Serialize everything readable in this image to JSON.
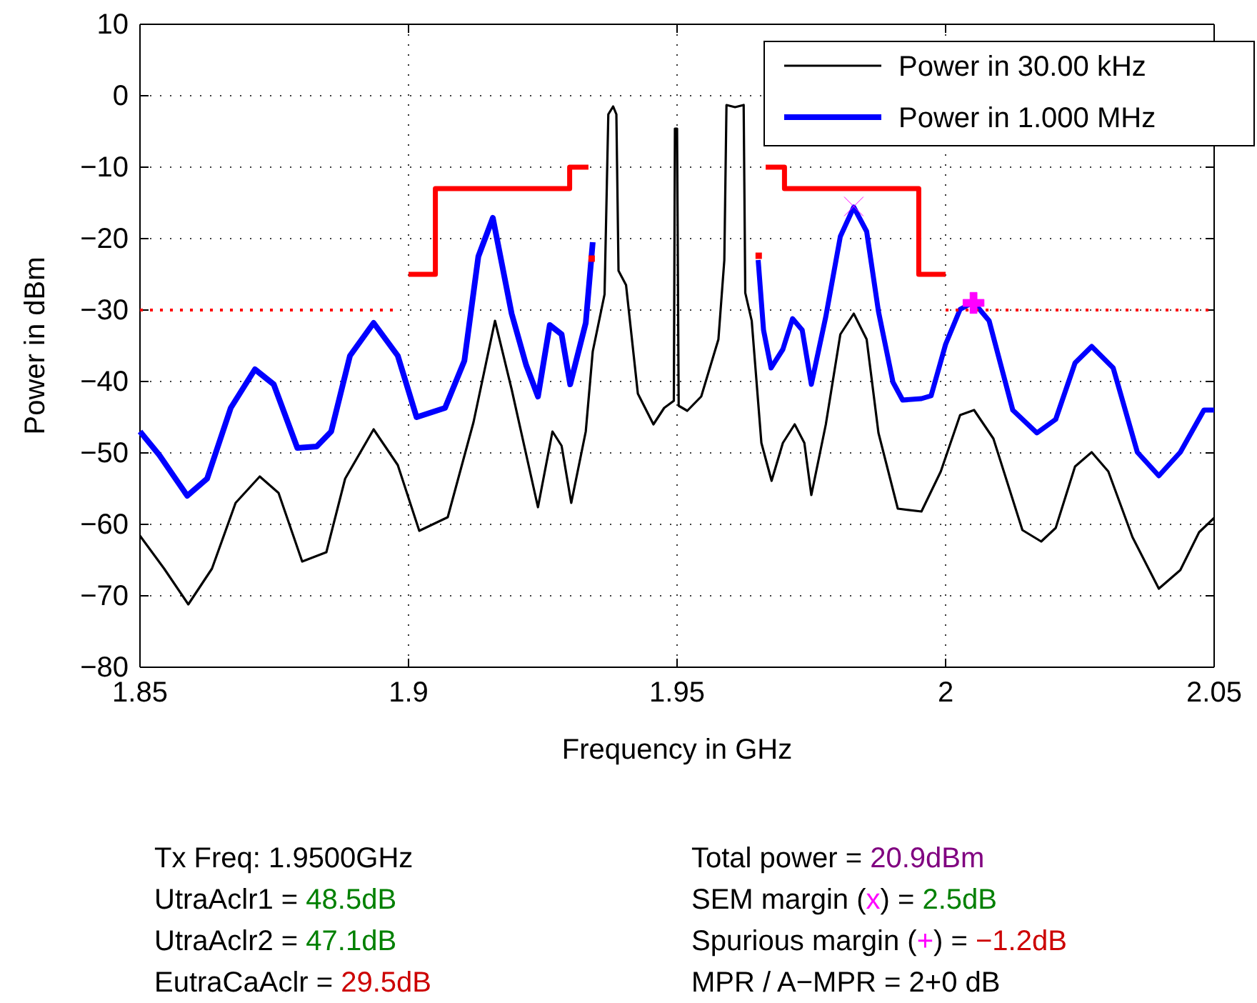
{
  "chart_data": {
    "type": "line",
    "xlabel": "Frequency in GHz",
    "ylabel": "Power in dBm",
    "xlim": [
      1.85,
      2.05
    ],
    "ylim": [
      -80,
      10
    ],
    "xticks": [
      1.85,
      1.9,
      1.95,
      2,
      2.05
    ],
    "yticks": [
      -80,
      -70,
      -60,
      -50,
      -40,
      -30,
      -20,
      -10,
      0,
      10
    ],
    "grid": true,
    "legend": "top right",
    "series": [
      {
        "name": "Power in 30.00 kHz",
        "color": "#000000",
        "x": [
          1.85,
          1.8545,
          1.859,
          1.8634,
          1.8678,
          1.8723,
          1.8758,
          1.8802,
          1.8847,
          1.8882,
          1.8935,
          1.898,
          1.902,
          1.9073,
          1.9121,
          1.9161,
          1.9192,
          1.9241,
          1.9268,
          1.9285,
          1.9303,
          1.933,
          1.9343,
          1.9365,
          1.9372,
          1.9381,
          1.9387,
          1.9391,
          1.9405,
          1.9427,
          1.9456,
          1.9476,
          1.9494,
          1.9496,
          1.95,
          1.9503,
          1.9519,
          1.9545,
          1.9577,
          1.9588,
          1.9592,
          1.9608,
          1.9624,
          1.9627,
          1.9639,
          1.9657,
          1.9676,
          1.9697,
          1.9719,
          1.9737,
          1.975,
          1.9777,
          1.9804,
          1.9829,
          1.9853,
          1.9875,
          1.9911,
          1.9955,
          1.9991,
          2.0027,
          2.0053,
          2.0089,
          2.0143,
          2.0178,
          2.0205,
          2.0241,
          2.0272,
          2.0303,
          2.0348,
          2.0397,
          2.0437,
          2.0472,
          2.05
        ],
        "values": [
          -61.6,
          -66.2,
          -71.2,
          -66.2,
          -57,
          -53.3,
          -55.6,
          -65.2,
          -63.9,
          -53.6,
          -46.7,
          -51.7,
          -60.9,
          -59,
          -45.7,
          -31.5,
          -41.1,
          -57.6,
          -47,
          -49,
          -57,
          -47,
          -35.8,
          -27.8,
          -2.6,
          -1.5,
          -2.6,
          -24.5,
          -26.5,
          -41.7,
          -46,
          -43.7,
          -42.7,
          -4.6,
          -4.6,
          -43.4,
          -44.1,
          -42.1,
          -34.1,
          -23,
          -1.3,
          -1.6,
          -1.3,
          -27.6,
          -31.5,
          -48.6,
          -53.9,
          -48.6,
          -46,
          -48.6,
          -55.9,
          -46,
          -33.4,
          -30.5,
          -34.1,
          -47.2,
          -57.8,
          -58.2,
          -52.6,
          -44.7,
          -44,
          -48,
          -60.8,
          -62.4,
          -60.5,
          -51.9,
          -49.9,
          -52.6,
          -61.8,
          -69,
          -66.4,
          -61.1,
          -59.1
        ]
      },
      {
        "name": "Power in 1.000 MHz",
        "color": "#0000ff",
        "x": [
          1.85,
          1.8536,
          1.8588,
          1.8625,
          1.8669,
          1.8714,
          1.8749,
          1.8793,
          1.8829,
          1.8856,
          1.8891,
          1.8935,
          1.898,
          1.9015,
          1.9068,
          1.9104,
          1.913,
          1.9157,
          1.9192,
          1.9219,
          1.9241,
          1.9263,
          1.9285,
          1.9301,
          1.933,
          1.9343
        ],
        "values": [
          -47,
          -50.3,
          -56,
          -53.6,
          -43.7,
          -38.3,
          -40.4,
          -49.3,
          -49.1,
          -47,
          -36.4,
          -31.8,
          -36.4,
          -45,
          -43.7,
          -37.1,
          -22.5,
          -17.1,
          -30.5,
          -37.7,
          -42.1,
          -32.1,
          -33.4,
          -40.4,
          -31.8,
          -20.5
        ]
      },
      {
        "color": "#0000ff",
        "x": [
          1.9651,
          1.9661,
          1.9675,
          1.9697,
          1.9715,
          1.9733,
          1.975,
          1.9777,
          1.9804,
          1.9829,
          1.9853,
          1.9875,
          1.9902,
          1.992,
          1.9955,
          1.9973,
          2,
          2.0027,
          2.0052,
          2.0081,
          2.0125,
          2.017,
          2.0205,
          2.0241,
          2.0272,
          2.0312,
          2.0357,
          2.0397,
          2.0437,
          2.0481,
          2.05
        ],
        "values": [
          -23,
          -32.8,
          -38.1,
          -35.5,
          -31.2,
          -32.8,
          -40.4,
          -30.9,
          -19.7,
          -15.6,
          -19,
          -30.2,
          -40.1,
          -42.6,
          -42.4,
          -42,
          -34.8,
          -29.9,
          -28.9,
          -31.5,
          -44,
          -47.2,
          -45.3,
          -37.4,
          -35.1,
          -38.1,
          -49.9,
          -53.2,
          -49.9,
          -44,
          -44
        ]
      },
      {
        "color": "#ff0000",
        "x": [
          1.9,
          1.905,
          1.905,
          1.93,
          1.93,
          1.9335
        ],
        "values": [
          -25,
          -25,
          -13,
          -13,
          -10,
          -10
        ]
      },
      {
        "color": "#ff0000",
        "x": [
          1.9665,
          1.97,
          1.97,
          1.995,
          1.995,
          2
        ],
        "values": [
          -10,
          -10,
          -13,
          -13,
          -25,
          -25
        ]
      },
      {
        "color": "#ff0000",
        "line_style": "dotted",
        "x": [
          1.85,
          1.8975
        ],
        "values": [
          -30,
          -30
        ]
      },
      {
        "color": "#ff0000",
        "line_style": "dotted",
        "x": [
          2,
          2.05
        ],
        "values": [
          -30,
          -30
        ]
      },
      {
        "type": "scatter",
        "color": "#ff0000",
        "marker": "square",
        "x": [
          1.9341,
          1.9652
        ],
        "values": [
          -22.8,
          -22.4
        ]
      },
      {
        "type": "scatter",
        "color": "#ff00ff",
        "marker": "x",
        "x": [
          1.9829
        ],
        "values": [
          -15.5
        ]
      },
      {
        "type": "scatter",
        "color": "#ff00ff",
        "marker": "cross",
        "x": [
          2.0052
        ],
        "values": [
          -29
        ]
      }
    ],
    "annotations": [
      "Tx Freq: 1.9500GHz",
      "UtraAclr1 = 48.5dB",
      "UtraAclr2 = 47.1dB",
      "EutraCaAclr = 29.5dB",
      "Total power = 20.9dBm",
      "SEM margin (x) = 2.5dB",
      "Spurious margin (+) = −1.2dB",
      "MPR / A−MPR = 2+0 dB"
    ]
  }
}
